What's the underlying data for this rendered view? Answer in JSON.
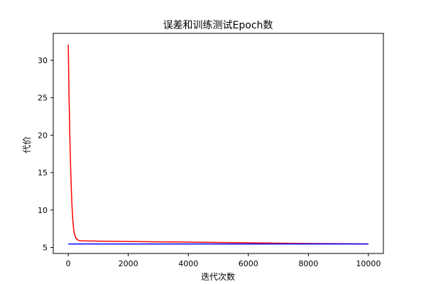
{
  "chart_data": {
    "type": "line",
    "title": "误差和训练测试Epoch数",
    "xlabel": "迭代次数",
    "ylabel": "代价",
    "xlim": [
      -500,
      10500
    ],
    "ylim": [
      4.2,
      33.6
    ],
    "xticks": [
      0,
      2000,
      4000,
      6000,
      8000,
      10000
    ],
    "yticks": [
      5,
      10,
      15,
      20,
      25,
      30
    ],
    "grid": false,
    "legend": false,
    "series": [
      {
        "color": "#ff0000",
        "x": [
          0,
          25,
          50,
          75,
          100,
          125,
          150,
          175,
          200,
          250,
          300,
          350,
          400,
          500,
          1000,
          2000,
          3000,
          4000,
          5000,
          6000,
          7000,
          8000,
          9000,
          10000
        ],
        "y": [
          32.1,
          25.5,
          20.3,
          16.2,
          13.0,
          10.5,
          8.8,
          7.6,
          6.9,
          6.3,
          6.05,
          5.95,
          5.9,
          5.88,
          5.85,
          5.8,
          5.75,
          5.72,
          5.67,
          5.62,
          5.58,
          5.53,
          5.5,
          5.47
        ]
      },
      {
        "color": "#0000ff",
        "x": [
          0,
          2000,
          4000,
          6000,
          8000,
          10000
        ],
        "y": [
          5.47,
          5.47,
          5.47,
          5.47,
          5.47,
          5.47
        ]
      }
    ]
  }
}
